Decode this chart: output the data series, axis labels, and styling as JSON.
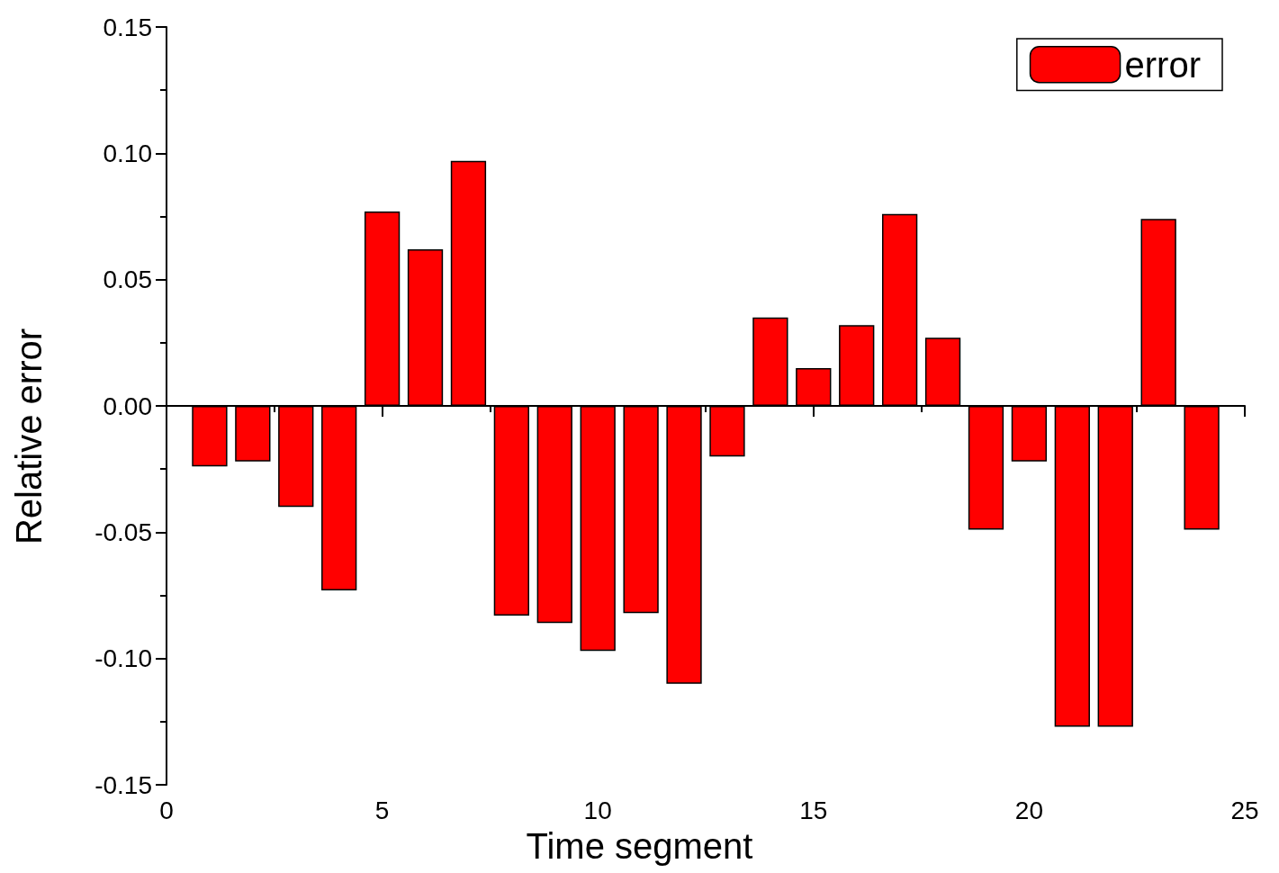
{
  "chart_data": {
    "type": "bar",
    "xlabel": "Time segment",
    "ylabel": "Relative error",
    "x": [
      1,
      2,
      3,
      4,
      5,
      6,
      7,
      8,
      9,
      10,
      11,
      12,
      13,
      14,
      15,
      16,
      17,
      18,
      19,
      20,
      21,
      22,
      23,
      24
    ],
    "series": [
      {
        "name": "error",
        "color": "#ff0000",
        "values": [
          -0.024,
          -0.022,
          -0.04,
          -0.073,
          0.077,
          0.062,
          0.097,
          -0.083,
          -0.086,
          -0.097,
          -0.082,
          -0.11,
          -0.02,
          0.035,
          0.015,
          0.032,
          0.076,
          0.027,
          -0.049,
          -0.022,
          -0.127,
          -0.127,
          0.074,
          -0.049
        ]
      }
    ],
    "xlim": [
      0,
      25
    ],
    "xticks": [
      0,
      5,
      10,
      15,
      20,
      25
    ],
    "ylim": [
      -0.15,
      0.15
    ],
    "yticks": [
      {
        "value": -0.15,
        "label": "-0.15"
      },
      {
        "value": -0.1,
        "label": "-0.10"
      },
      {
        "value": -0.05,
        "label": "-0.05"
      },
      {
        "value": 0,
        "label": "0.00"
      },
      {
        "value": 0.05,
        "label": "0.05"
      },
      {
        "value": 0.1,
        "label": "0.10"
      },
      {
        "value": 0.15,
        "label": "0.15"
      }
    ],
    "legend": "top right"
  }
}
